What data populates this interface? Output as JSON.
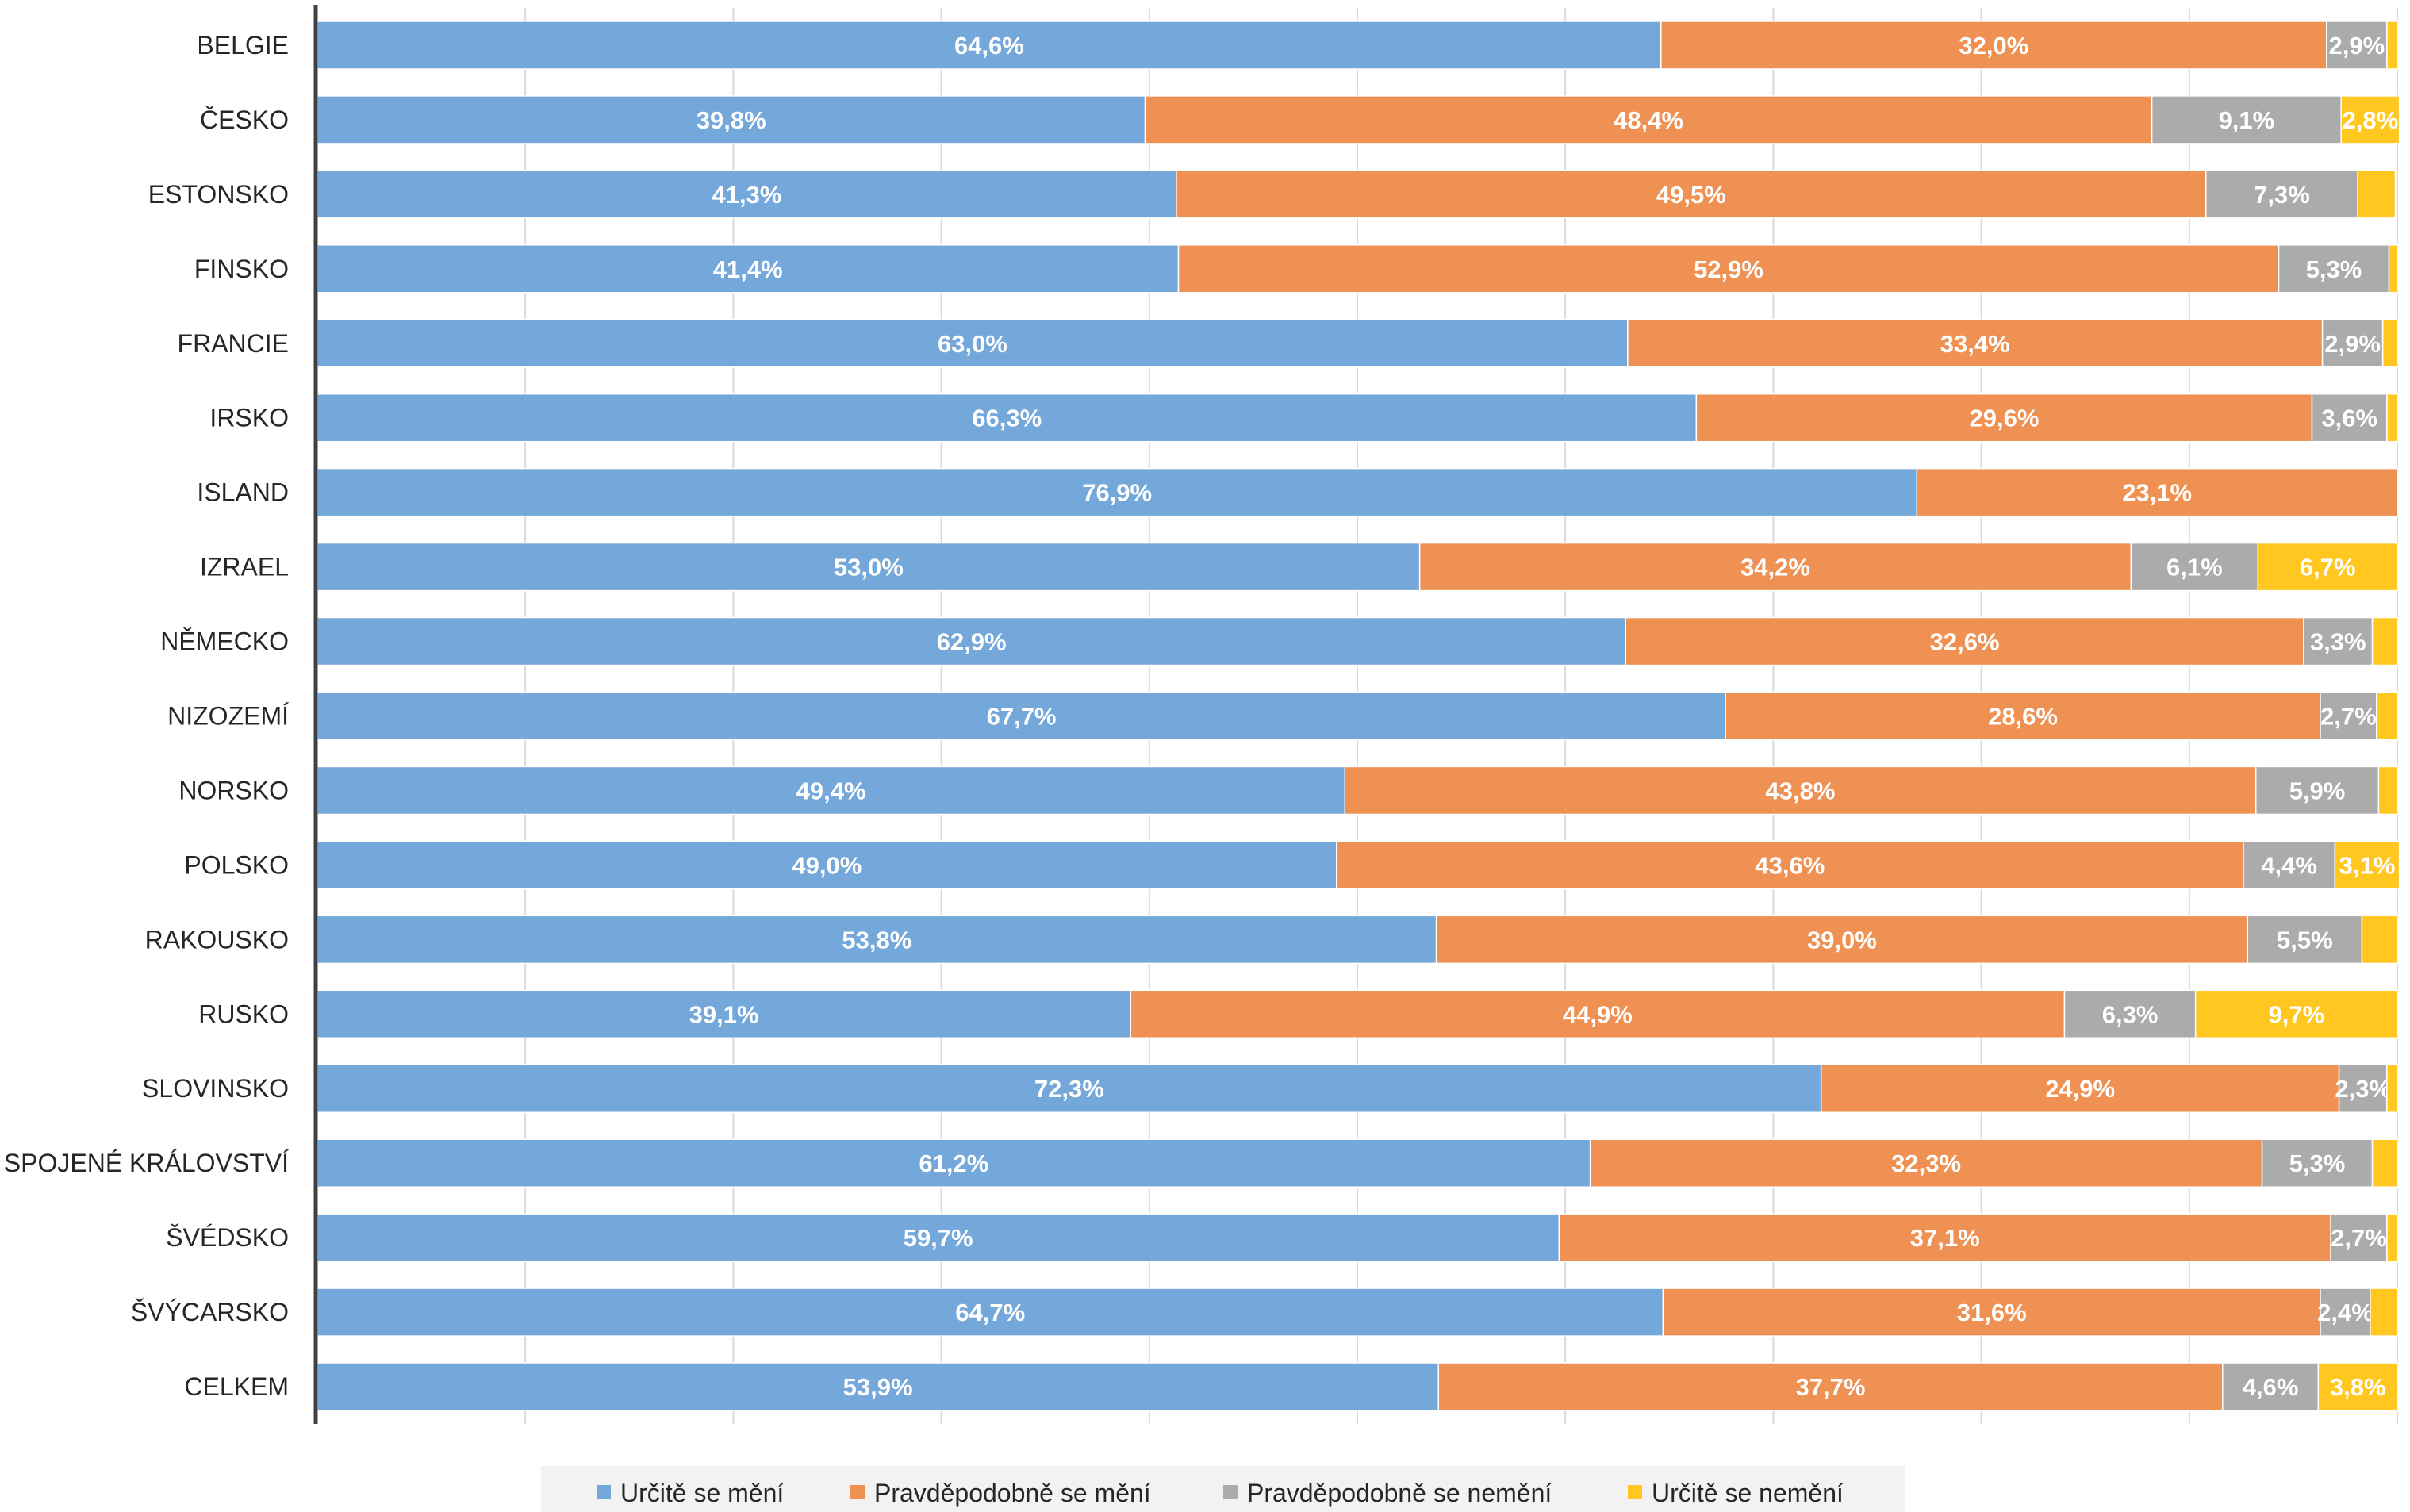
{
  "chart_data": {
    "type": "bar",
    "orientation": "horizontal",
    "stacked": true,
    "percent_stacked": true,
    "categories": [
      "BELGIE",
      "ČESKO",
      "ESTONSKO",
      "FINSKO",
      "FRANCIE",
      "IRSKO",
      "ISLAND",
      "IZRAEL",
      "NĚMECKO",
      "NIZOZEMÍ",
      "NORSKO",
      "POLSKO",
      "RAKOUSKO",
      "RUSKO",
      "SLOVINSKO",
      "SPOJENÉ KRÁLOVSTVÍ",
      "ŠVÉDSKO",
      "ŠVÝCARSKO",
      "CELKEM"
    ],
    "series": [
      {
        "name": "Určitě se mění",
        "color": "#74A7DA",
        "values": [
          64.6,
          39.8,
          41.3,
          41.4,
          63.0,
          66.3,
          76.9,
          53.0,
          62.9,
          67.7,
          49.4,
          49.0,
          53.8,
          39.1,
          72.3,
          61.2,
          59.7,
          64.7,
          53.9
        ],
        "labels": [
          "64,6%",
          "39,8%",
          "41,3%",
          "41,4%",
          "63,0%",
          "66,3%",
          "76,9%",
          "53,0%",
          "62,9%",
          "67,7%",
          "49,4%",
          "49,0%",
          "53,8%",
          "39,1%",
          "72,3%",
          "61,2%",
          "59,7%",
          "64,7%",
          "53,9%"
        ]
      },
      {
        "name": "Pravděpodobně se mění",
        "color": "#EE9153",
        "values": [
          32.0,
          48.4,
          49.5,
          52.9,
          33.4,
          29.6,
          23.1,
          34.2,
          32.6,
          28.6,
          43.8,
          43.6,
          39.0,
          44.9,
          24.9,
          32.3,
          37.1,
          31.6,
          37.7
        ],
        "labels": [
          "32,0%",
          "48,4%",
          "49,5%",
          "52,9%",
          "33,4%",
          "29,6%",
          "23,1%",
          "34,2%",
          "32,6%",
          "28,6%",
          "43,8%",
          "43,6%",
          "39,0%",
          "44,9%",
          "24,9%",
          "32,3%",
          "37,1%",
          "31,6%",
          "37,7%"
        ]
      },
      {
        "name": "Pravděpodobně se nemění",
        "color": "#ABABAB",
        "values": [
          2.9,
          9.1,
          7.3,
          5.3,
          2.9,
          3.6,
          0,
          6.1,
          3.3,
          2.7,
          5.9,
          4.4,
          5.5,
          6.3,
          2.3,
          5.3,
          2.7,
          2.4,
          4.6
        ],
        "labels": [
          "2,9%",
          "9,1%",
          "7,3%",
          "5,3%",
          "2,9%",
          "3,6%",
          "",
          "6,1%",
          "3,3%",
          "2,7%",
          "5,9%",
          "4,4%",
          "5,5%",
          "6,3%",
          "2,3%",
          "5,3%",
          "2,7%",
          "2,4%",
          "4,6%"
        ]
      },
      {
        "name": "Určitě se nemění",
        "color": "#FFC71F",
        "values": [
          0.5,
          2.8,
          1.8,
          0.4,
          0.7,
          0.5,
          0,
          6.7,
          1.2,
          1.0,
          0.9,
          3.1,
          1.7,
          9.7,
          0.5,
          1.2,
          0.5,
          1.3,
          3.8
        ],
        "labels": [
          "",
          "2,8%",
          "",
          "",
          "",
          "",
          "",
          "6,7%",
          "",
          "",
          "",
          "3,1%",
          "",
          "9,7%",
          "",
          "",
          "",
          "",
          "3,8%"
        ]
      }
    ],
    "xlim": [
      0,
      100
    ],
    "grid": true,
    "legend": "bottom"
  }
}
